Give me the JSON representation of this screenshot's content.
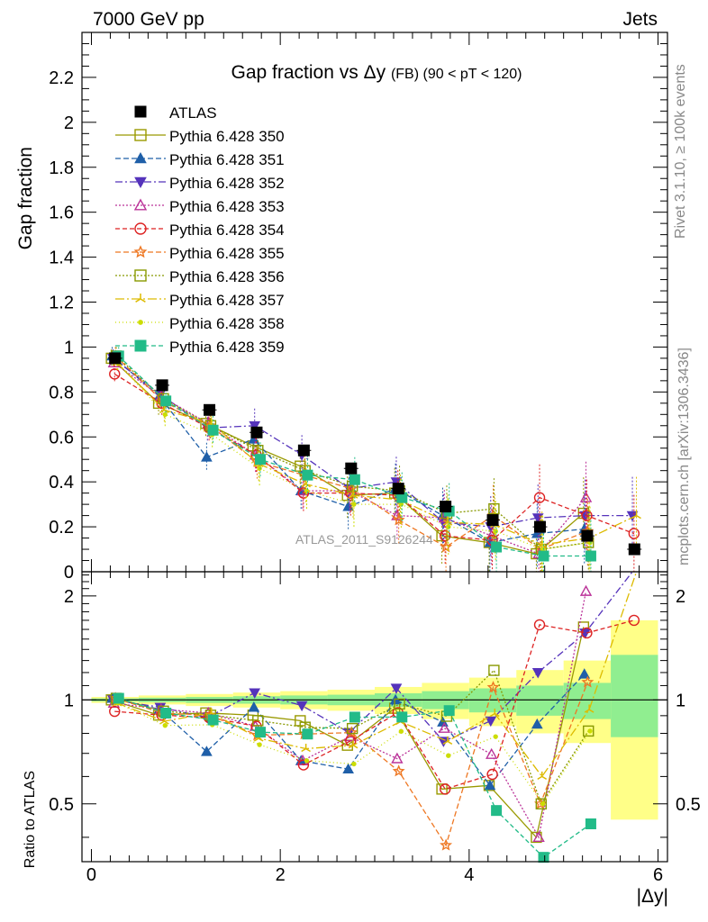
{
  "header": {
    "left": "7000 GeV pp",
    "right": "Jets"
  },
  "side_labels": {
    "rivet": "Rivet 3.1.10, ≥ 100k events",
    "mcplots": "mcplots.cern.ch [arXiv:1306.3436]"
  },
  "chart_data": {
    "type": "scatter",
    "title_main": "Gap fraction vs",
    "title_delta_y": "Δy",
    "title_suffix": "(FB) (90 < pT < 120)",
    "ylabel": "Gap fraction",
    "ratio_ylabel": "Ratio to ATLAS",
    "xlabel": "|Δy|",
    "watermark": "ATLAS_2011_S9126244",
    "xlim": [
      -0.1,
      6.1
    ],
    "ylim": [
      0,
      2.4
    ],
    "ratio_ylim": [
      0.34,
      2.35
    ],
    "x_ticks": [
      0,
      2,
      4,
      6
    ],
    "y_ticks": [
      0.2,
      0.4,
      0.6,
      0.8,
      1,
      1.2,
      1.4,
      1.6,
      1.8,
      2,
      2.2
    ],
    "y_zero_label": "0",
    "ratio_ticks": [
      0.5,
      1,
      2
    ],
    "x": [
      0.25,
      0.75,
      1.25,
      1.75,
      2.25,
      2.75,
      3.25,
      3.75,
      4.25,
      4.75,
      5.25,
      5.75
    ],
    "atlas": {
      "name": "ATLAS",
      "values": [
        0.95,
        0.83,
        0.72,
        0.62,
        0.54,
        0.46,
        0.37,
        0.29,
        0.23,
        0.2,
        0.16,
        0.1
      ]
    },
    "series": [
      {
        "name": "Pythia 6.428 350",
        "color": "#999900",
        "marker": "open-square",
        "dash": "",
        "values": [
          0.95,
          0.75,
          0.66,
          0.56,
          0.47,
          0.34,
          0.35,
          0.16,
          0.13,
          0.08,
          0.26,
          null
        ]
      },
      {
        "name": "Pythia 6.428 351",
        "color": "#1f5fa8",
        "marker": "triangle-up",
        "dash": "6,3",
        "values": [
          0.96,
          0.78,
          0.51,
          0.59,
          0.36,
          0.29,
          0.37,
          0.25,
          0.13,
          0.17,
          0.19,
          null
        ]
      },
      {
        "name": "Pythia 6.428 352",
        "color": "#5533bb",
        "marker": "triangle-down",
        "dash": "8,3,2,3",
        "values": [
          0.95,
          0.79,
          0.64,
          0.65,
          0.52,
          0.37,
          0.4,
          0.22,
          0.2,
          0.24,
          0.25,
          0.25
        ]
      },
      {
        "name": "Pythia 6.428 353",
        "color": "#bb3399",
        "marker": "open-triangle",
        "dash": "2,2",
        "values": [
          0.93,
          0.78,
          0.66,
          0.52,
          0.36,
          0.36,
          0.25,
          0.24,
          0.16,
          0.08,
          0.33,
          null
        ]
      },
      {
        "name": "Pythia 6.428 354",
        "color": "#dd2222",
        "marker": "open-circle",
        "dash": "5,3",
        "values": [
          0.88,
          0.75,
          0.64,
          0.52,
          0.35,
          0.35,
          0.34,
          0.16,
          0.14,
          0.33,
          0.25,
          0.17
        ]
      },
      {
        "name": "Pythia 6.428 355",
        "color": "#ee7722",
        "marker": "open-star",
        "dash": "6,3",
        "values": [
          0.96,
          0.76,
          0.65,
          0.49,
          0.43,
          0.37,
          0.23,
          0.11,
          0.25,
          0.1,
          0.18,
          null
        ]
      },
      {
        "name": "Pythia 6.428 356",
        "color": "#889900",
        "marker": "open-square",
        "dash": "2,2",
        "values": [
          0.96,
          0.77,
          0.65,
          0.54,
          0.45,
          0.38,
          0.36,
          0.26,
          0.28,
          0.1,
          0.13,
          null
        ]
      },
      {
        "name": "Pythia 6.428 357",
        "color": "#ddbb00",
        "marker": "tri",
        "dash": "10,3,2,3",
        "values": [
          0.93,
          0.72,
          0.66,
          0.48,
          0.39,
          0.34,
          0.32,
          0.22,
          0.21,
          0.12,
          0.15,
          0.25
        ]
      },
      {
        "name": "Pythia 6.428 358",
        "color": "#ccdd00",
        "marker": "dot",
        "dash": "1,3",
        "values": [
          0.93,
          0.7,
          0.61,
          0.46,
          0.36,
          0.3,
          0.3,
          0.2,
          0.18,
          0.1,
          0.13,
          null
        ]
      },
      {
        "name": "Pythia 6.428 359",
        "color": "#22bb88",
        "marker": "square",
        "dash": "5,3",
        "values": [
          0.96,
          0.76,
          0.63,
          0.5,
          0.43,
          0.41,
          0.33,
          0.27,
          0.11,
          0.07,
          0.07,
          null
        ]
      }
    ],
    "uncertainty_bands": {
      "edges": [
        0,
        0.5,
        1,
        1.5,
        2,
        2.5,
        3,
        3.5,
        4,
        4.5,
        5,
        5.5,
        6
      ],
      "inner_lo": [
        0.99,
        0.985,
        0.98,
        0.975,
        0.97,
        0.965,
        0.955,
        0.94,
        0.92,
        0.9,
        0.88,
        0.78
      ],
      "inner_hi": [
        1.01,
        1.015,
        1.02,
        1.025,
        1.03,
        1.035,
        1.045,
        1.06,
        1.08,
        1.1,
        1.12,
        1.35
      ],
      "outer_lo": [
        0.98,
        0.97,
        0.96,
        0.95,
        0.94,
        0.93,
        0.91,
        0.88,
        0.84,
        0.8,
        0.75,
        0.45
      ],
      "outer_hi": [
        1.02,
        1.03,
        1.04,
        1.05,
        1.06,
        1.07,
        1.09,
        1.12,
        1.16,
        1.22,
        1.3,
        1.7
      ],
      "inner_color": "#90ee90",
      "outer_color": "#ffff88"
    }
  }
}
